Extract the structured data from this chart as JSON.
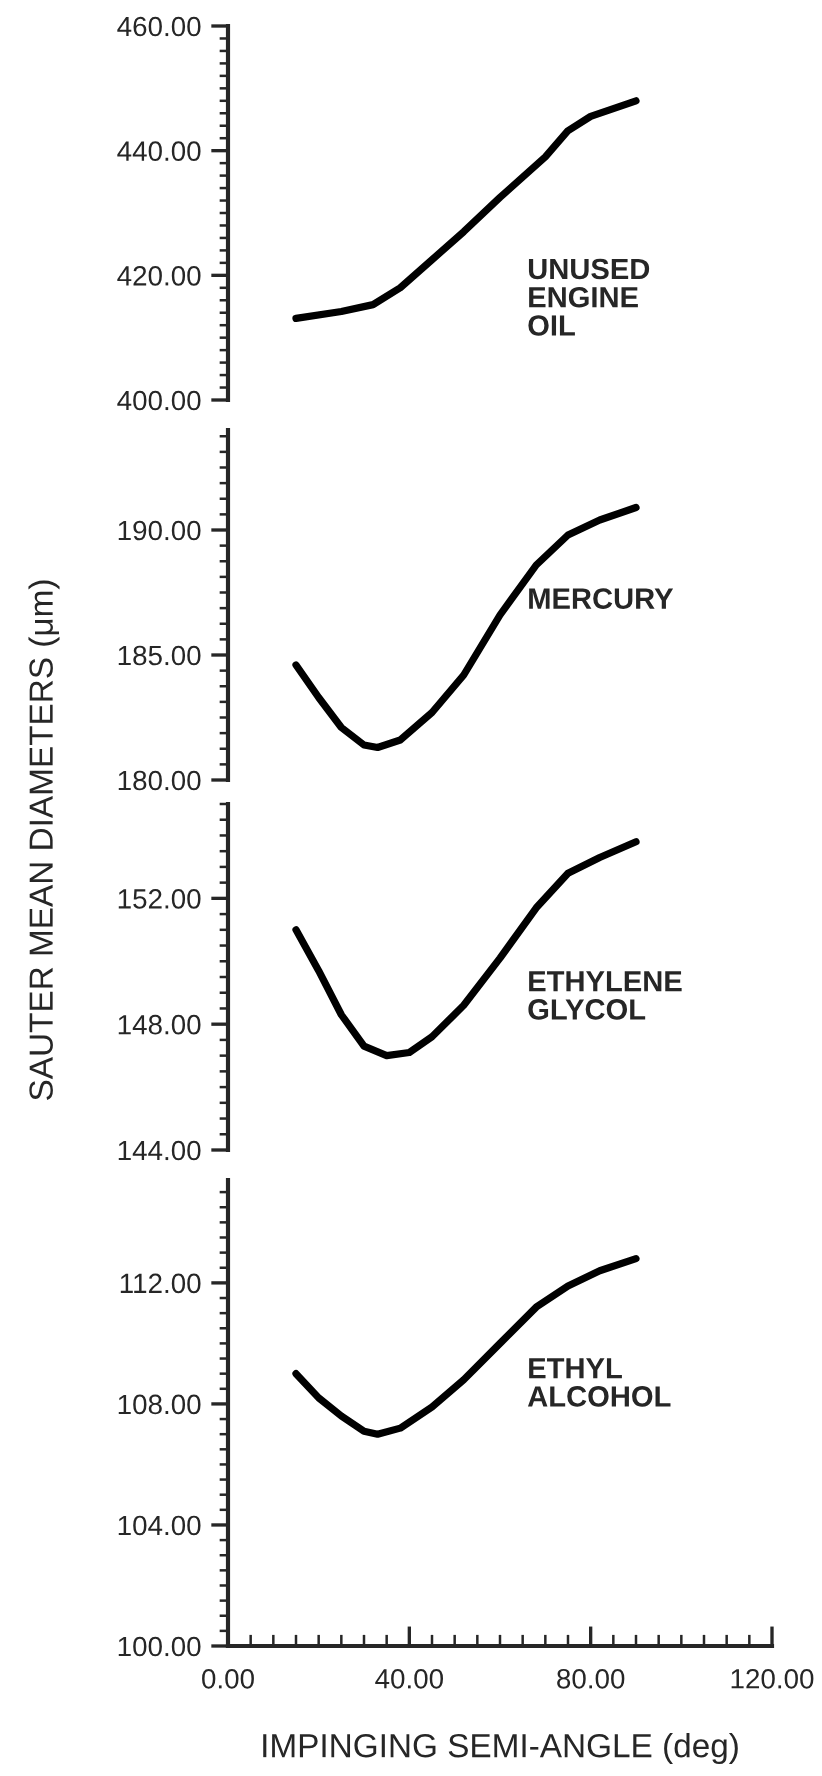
{
  "chart_data": [
    {
      "type": "line",
      "x": [
        15,
        25,
        32,
        38,
        45,
        52,
        60,
        70,
        75,
        80,
        90
      ],
      "xlim": [
        0,
        120
      ],
      "ylim": [
        400,
        460
      ],
      "tick_labels": "y",
      "grid": false,
      "marker": "none",
      "line_style": "solid",
      "yticks": [
        {
          "value": 400,
          "label": "400.00"
        },
        {
          "value": 420,
          "label": "420.00"
        },
        {
          "value": 440,
          "label": "440.00"
        },
        {
          "value": 460,
          "label": "460.00"
        }
      ],
      "series": [
        {
          "name": "UNUSED\nENGINE\nOIL",
          "color": "#000000",
          "values": [
            413.1,
            414.2,
            415.3,
            418.0,
            422.5,
            427.0,
            432.5,
            439.0,
            443.2,
            445.5,
            448.0
          ]
        }
      ]
    },
    {
      "type": "line",
      "x": [
        15,
        20,
        25,
        30,
        33,
        38,
        45,
        52,
        60,
        68,
        75,
        82,
        90
      ],
      "xlim": [
        0,
        120
      ],
      "ylim": [
        180,
        194
      ],
      "tick_labels": "y",
      "grid": false,
      "marker": "none",
      "line_style": "solid",
      "yticks": [
        {
          "value": 180,
          "label": "180.00"
        },
        {
          "value": 185,
          "label": "185.00"
        },
        {
          "value": 190,
          "label": "190.00"
        }
      ],
      "series": [
        {
          "name": "MERCURY",
          "color": "#000000",
          "values": [
            184.6,
            183.3,
            182.1,
            181.4,
            181.3,
            181.6,
            182.7,
            184.2,
            186.6,
            188.6,
            189.8,
            190.4,
            190.9
          ]
        }
      ]
    },
    {
      "type": "line",
      "x": [
        15,
        20,
        25,
        30,
        35,
        40,
        45,
        52,
        60,
        68,
        75,
        82,
        90
      ],
      "xlim": [
        0,
        120
      ],
      "ylim": [
        144,
        155
      ],
      "tick_labels": "y",
      "grid": false,
      "marker": "none",
      "line_style": "solid",
      "ylabel": "SAUTER MEAN DIAMETERS (μm)",
      "yticks": [
        {
          "value": 144,
          "label": "144.00"
        },
        {
          "value": 148,
          "label": "148.00"
        },
        {
          "value": 152,
          "label": "152.00"
        }
      ],
      "series": [
        {
          "name": "ETHYLENE\nGLYCOL",
          "color": "#000000",
          "values": [
            151.0,
            149.7,
            148.3,
            147.3,
            147.0,
            147.1,
            147.6,
            148.6,
            150.1,
            151.7,
            152.8,
            153.3,
            153.8
          ]
        }
      ]
    },
    {
      "type": "line",
      "x": [
        15,
        20,
        25,
        30,
        33,
        38,
        45,
        52,
        60,
        68,
        75,
        82,
        90
      ],
      "xlim": [
        0,
        120
      ],
      "ylim": [
        100,
        115.4
      ],
      "grid": false,
      "marker": "none",
      "line_style": "solid",
      "xlabel": "IMPINGING SEMI-ANGLE (deg)",
      "xticks": [
        {
          "value": 0,
          "label": "0.00"
        },
        {
          "value": 40,
          "label": "40.00"
        },
        {
          "value": 80,
          "label": "80.00"
        },
        {
          "value": 120,
          "label": "120.00"
        }
      ],
      "yticks": [
        {
          "value": 100,
          "label": "100.00"
        },
        {
          "value": 104,
          "label": "104.00"
        },
        {
          "value": 108,
          "label": "108.00"
        },
        {
          "value": 112,
          "label": "112.00"
        }
      ],
      "series": [
        {
          "name": "ETHYL\nALCOHOL",
          "color": "#000000",
          "values": [
            109.0,
            108.2,
            107.6,
            107.1,
            107.0,
            107.2,
            107.9,
            108.8,
            110.0,
            111.2,
            111.9,
            112.4,
            112.8
          ]
        }
      ]
    }
  ]
}
